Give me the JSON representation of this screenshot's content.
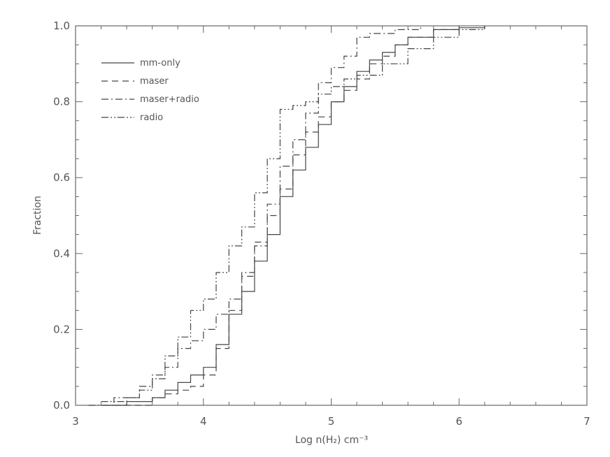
{
  "chart_data": {
    "type": "line",
    "title": "",
    "xlabel": "Log n(H₂) cm⁻³",
    "ylabel": "Fraction",
    "xlim": [
      3,
      7
    ],
    "ylim": [
      0.0,
      1.0
    ],
    "xticks": [
      "3",
      "4",
      "5",
      "6",
      "7"
    ],
    "yticks": [
      "0.0",
      "0.2",
      "0.4",
      "0.6",
      "0.8",
      "1.0"
    ],
    "legend_position": "top-left",
    "grid": false,
    "series": [
      {
        "name": "mm-only",
        "dash": "solid",
        "x": [
          3.2,
          3.4,
          3.6,
          3.7,
          3.8,
          3.9,
          4.0,
          4.1,
          4.2,
          4.3,
          4.4,
          4.5,
          4.6,
          4.7,
          4.8,
          4.9,
          5.0,
          5.1,
          5.2,
          5.3,
          5.4,
          5.5,
          5.6,
          5.8,
          6.0,
          6.2
        ],
        "y": [
          0.0,
          0.01,
          0.02,
          0.04,
          0.06,
          0.08,
          0.1,
          0.16,
          0.24,
          0.3,
          0.38,
          0.45,
          0.55,
          0.62,
          0.68,
          0.74,
          0.8,
          0.84,
          0.88,
          0.91,
          0.93,
          0.95,
          0.97,
          0.99,
          0.995,
          1.0
        ]
      },
      {
        "name": "maser",
        "dash": "dashed",
        "x": [
          3.3,
          3.6,
          3.7,
          3.8,
          3.9,
          4.0,
          4.1,
          4.2,
          4.3,
          4.4,
          4.5,
          4.6,
          4.7,
          4.8,
          4.9,
          5.0,
          5.1,
          5.2,
          5.3,
          5.4,
          5.5,
          5.6,
          5.8,
          6.0
        ],
        "y": [
          0.0,
          0.02,
          0.03,
          0.04,
          0.05,
          0.08,
          0.15,
          0.25,
          0.34,
          0.43,
          0.5,
          0.57,
          0.66,
          0.72,
          0.76,
          0.8,
          0.83,
          0.86,
          0.9,
          0.92,
          0.95,
          0.97,
          0.99,
          1.0
        ]
      },
      {
        "name": "maser+radio",
        "dash": "dashdot",
        "x": [
          3.1,
          3.3,
          3.5,
          3.6,
          3.7,
          3.8,
          3.9,
          4.0,
          4.1,
          4.2,
          4.3,
          4.4,
          4.5,
          4.6,
          4.7,
          4.8,
          4.9,
          5.0,
          5.1,
          5.2,
          5.3,
          5.5,
          5.7
        ],
        "y": [
          0.0,
          0.02,
          0.05,
          0.08,
          0.1,
          0.15,
          0.17,
          0.2,
          0.24,
          0.28,
          0.35,
          0.42,
          0.53,
          0.63,
          0.7,
          0.77,
          0.85,
          0.89,
          0.92,
          0.97,
          0.98,
          0.99,
          1.0
        ]
      },
      {
        "name": "radio",
        "dash": "dashdotdot",
        "x": [
          3.2,
          3.4,
          3.5,
          3.6,
          3.7,
          3.8,
          3.9,
          4.0,
          4.1,
          4.2,
          4.3,
          4.4,
          4.5,
          4.6,
          4.7,
          4.8,
          4.9,
          5.0,
          5.1,
          5.2,
          5.4,
          5.6,
          5.8,
          6.0,
          6.2
        ],
        "y": [
          0.01,
          0.02,
          0.04,
          0.07,
          0.13,
          0.18,
          0.25,
          0.28,
          0.35,
          0.42,
          0.47,
          0.56,
          0.65,
          0.78,
          0.79,
          0.8,
          0.82,
          0.84,
          0.86,
          0.87,
          0.9,
          0.94,
          0.97,
          0.99,
          1.0
        ]
      }
    ]
  }
}
